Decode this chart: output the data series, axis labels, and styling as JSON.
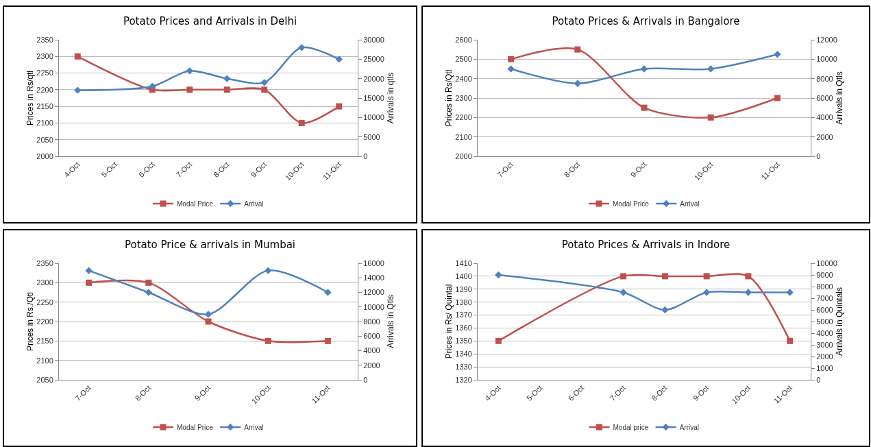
{
  "chart_data": [
    {
      "type": "line",
      "title": "Potato Prices and Arrivals in Delhi",
      "ylabel": "Prices in Rs/qtl",
      "y2label": "Arrivals in qtls",
      "categories": [
        "4-Oct",
        "5-Oct",
        "6-Oct",
        "7-Oct",
        "8-Oct",
        "9-Oct",
        "10-Oct",
        "11-Oct"
      ],
      "ylim": [
        2000,
        2350
      ],
      "yticks": [
        2000,
        2050,
        2100,
        2150,
        2200,
        2250,
        2300,
        2350
      ],
      "y2lim": [
        0,
        30000
      ],
      "y2ticks": [
        0,
        5000,
        10000,
        15000,
        20000,
        25000,
        30000
      ],
      "grid": "y",
      "legend": "bottom",
      "series": [
        {
          "name": "Modal Price",
          "color": "#c0504d",
          "marker": "square",
          "values": [
            2300,
            null,
            2200,
            2200,
            2200,
            2200,
            2100,
            2150
          ]
        },
        {
          "name": "Arrival",
          "color": "#4f81bd",
          "marker": "diamond",
          "axis": "y2",
          "values": [
            17000,
            null,
            18000,
            22000,
            20000,
            19000,
            28000,
            25000
          ]
        }
      ]
    },
    {
      "type": "line",
      "title": "Potato Prices & Arrivals in Bangalore",
      "ylabel": "Prices in Rs/Qtl",
      "y2label": "Arrivals in Qtls",
      "categories": [
        "7-Oct",
        "8-Oct",
        "9-Oct",
        "10-Oct",
        "11-Oct"
      ],
      "ylim": [
        2000,
        2600
      ],
      "yticks": [
        2000,
        2100,
        2200,
        2300,
        2400,
        2500,
        2600
      ],
      "y2lim": [
        0,
        12000
      ],
      "y2ticks": [
        0,
        2000,
        4000,
        6000,
        8000,
        10000,
        12000
      ],
      "grid": "y",
      "legend": "bottom",
      "series": [
        {
          "name": "Modal Price",
          "color": "#c0504d",
          "marker": "square",
          "values": [
            2500,
            2550,
            2250,
            2200,
            2300
          ]
        },
        {
          "name": "Arrival",
          "color": "#4f81bd",
          "marker": "diamond",
          "axis": "y2",
          "values": [
            9000,
            7500,
            9000,
            9000,
            10500
          ]
        }
      ]
    },
    {
      "type": "line",
      "title": "Potato Price & arrivals in Mumbai",
      "ylabel": "Prices in Rs./Qtl",
      "y2label": "Arrivals in Qtls",
      "categories": [
        "7-Oct",
        "8-Oct",
        "9-Oct",
        "10-Oct",
        "11-Oct"
      ],
      "ylim": [
        2050,
        2350
      ],
      "yticks": [
        2050,
        2100,
        2150,
        2200,
        2250,
        2300,
        2350
      ],
      "y2lim": [
        0,
        16000
      ],
      "y2ticks": [
        0,
        2000,
        4000,
        6000,
        8000,
        10000,
        12000,
        14000,
        16000
      ],
      "grid": "y",
      "legend": "bottom",
      "series": [
        {
          "name": "Modal Price",
          "color": "#c0504d",
          "marker": "square",
          "values": [
            2300,
            2300,
            2200,
            2150,
            2150
          ]
        },
        {
          "name": "Arrival",
          "color": "#4f81bd",
          "marker": "diamond",
          "axis": "y2",
          "values": [
            15000,
            12000,
            9000,
            15000,
            12000
          ]
        }
      ]
    },
    {
      "type": "line",
      "title": "Potato Prices & Arrivals in Indore",
      "ylabel": "Prices in Rs/ Quintal",
      "y2label": "Arrivals in Quintals",
      "categories": [
        "4-Oct",
        "5-Oct",
        "6-Oct",
        "7-Oct",
        "8-Oct",
        "9-Oct",
        "10-Oct",
        "11-Oct"
      ],
      "ylim": [
        1320,
        1410
      ],
      "yticks": [
        1320,
        1330,
        1340,
        1350,
        1360,
        1370,
        1380,
        1390,
        1400,
        1410
      ],
      "y2lim": [
        0,
        10000
      ],
      "y2ticks": [
        0,
        1000,
        2000,
        3000,
        4000,
        5000,
        6000,
        7000,
        8000,
        9000,
        10000
      ],
      "grid": "y",
      "legend": "bottom",
      "series": [
        {
          "name": "Modal price",
          "color": "#c0504d",
          "marker": "square",
          "values": [
            1350,
            null,
            null,
            1400,
            1400,
            1400,
            1400,
            1350
          ]
        },
        {
          "name": "Arrival",
          "color": "#4f81bd",
          "marker": "diamond",
          "axis": "y2",
          "values": [
            9000,
            null,
            null,
            7500,
            6000,
            7500,
            7500,
            7500
          ]
        }
      ]
    }
  ]
}
